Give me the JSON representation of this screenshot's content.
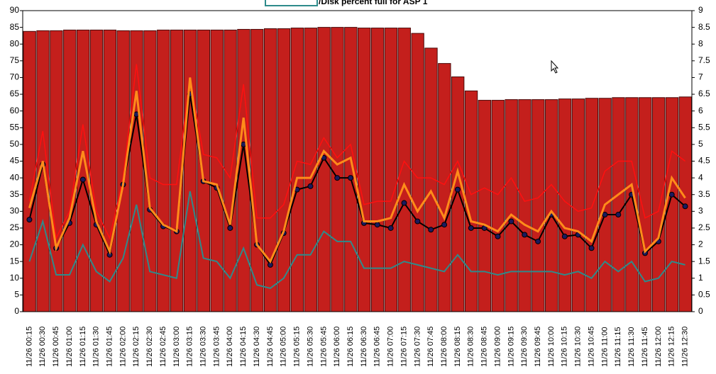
{
  "chart_data": {
    "type": "bar",
    "title": "/Disk percent full for ASP 1",
    "categories": [
      "11/26 00:15",
      "11/26 00:30",
      "11/26 00:45",
      "11/26 01:00",
      "11/26 01:15",
      "11/26 01:30",
      "11/26 01:45",
      "11/26 02:00",
      "11/26 02:15",
      "11/26 02:30",
      "11/26 02:45",
      "11/26 03:00",
      "11/26 03:15",
      "11/26 03:30",
      "11/26 03:45",
      "11/26 04:00",
      "11/26 04:15",
      "11/26 04:30",
      "11/26 04:45",
      "11/26 05:00",
      "11/26 05:15",
      "11/26 05:30",
      "11/26 05:45",
      "11/26 06:00",
      "11/26 06:15",
      "11/26 06:30",
      "11/26 06:45",
      "11/26 07:00",
      "11/26 07:15",
      "11/26 07:30",
      "11/26 07:45",
      "11/26 08:00",
      "11/26 08:15",
      "11/26 08:30",
      "11/26 08:45",
      "11/26 09:00",
      "11/26 09:15",
      "11/26 09:30",
      "11/26 09:45",
      "11/26 10:00",
      "11/26 10:15",
      "11/26 10:30",
      "11/26 10:45",
      "11/26 11:00",
      "11/26 11:15",
      "11/26 11:30",
      "11/26 11:45",
      "11/26 12:00",
      "11/26 12:15",
      "11/26 12:30"
    ],
    "bar_color": "#c41f1c",
    "values": [
      83.8,
      84,
      84,
      84.2,
      84.2,
      84.2,
      84.2,
      84,
      84,
      84,
      84.2,
      84.2,
      84.2,
      84.2,
      84.2,
      84.2,
      84.4,
      84.4,
      84.6,
      84.6,
      84.8,
      84.8,
      85,
      85,
      85,
      84.8,
      84.8,
      84.8,
      84.8,
      83.2,
      78.8,
      74.2,
      70.2,
      66,
      63.2,
      63.2,
      63.4,
      63.4,
      63.4,
      63.4,
      63.6,
      63.6,
      63.8,
      63.8,
      64,
      64,
      64,
      64,
      64,
      64.2
    ],
    "series": [
      {
        "color": "#ff1010",
        "width": 1.5,
        "values": [
          33,
          54,
          22,
          30,
          56,
          30,
          22,
          40,
          74,
          40,
          38,
          38,
          70,
          47,
          46,
          40,
          68,
          28,
          28,
          32,
          45,
          44,
          52,
          46,
          50,
          32,
          33,
          33,
          45,
          40,
          40,
          38,
          45,
          35,
          37,
          35,
          40,
          33,
          34,
          38,
          33,
          30,
          31,
          42,
          45,
          45,
          28,
          30,
          48,
          45
        ]
      },
      {
        "color": "#2e8b8b",
        "width": 2,
        "values": [
          15,
          27,
          11,
          11,
          20,
          12,
          9,
          16,
          32,
          12,
          11,
          10,
          36,
          16,
          15,
          10,
          19,
          8,
          7,
          10,
          17,
          17,
          24,
          21,
          21,
          13,
          13,
          13,
          15,
          14,
          13,
          12,
          17,
          12,
          12,
          11,
          12,
          12,
          12,
          12,
          11,
          12,
          10,
          15,
          12,
          15,
          9,
          10,
          15,
          14
        ]
      },
      {
        "color": "#000000",
        "width": 2,
        "markers": true,
        "values": [
          27.5,
          44,
          19,
          26.5,
          39.5,
          26,
          17,
          38,
          59,
          30.5,
          25.5,
          24,
          65,
          39,
          37,
          25,
          50,
          20,
          14,
          23.5,
          36.5,
          37.5,
          46,
          40,
          40,
          26.5,
          26,
          25,
          32.5,
          27,
          24.5,
          26,
          36.5,
          25,
          25,
          22.5,
          27,
          23,
          21,
          29,
          22.5,
          23,
          19,
          29,
          29,
          35,
          17.5,
          21,
          35,
          31.5
        ]
      },
      {
        "color": "#ff8c1a",
        "width": 3,
        "values": [
          31,
          45,
          19,
          28,
          48,
          27,
          18,
          38,
          66,
          31,
          26,
          24,
          70,
          39,
          38,
          26,
          58,
          20,
          15,
          24,
          40,
          40,
          48,
          44,
          46,
          27,
          27,
          28,
          38,
          30,
          36,
          28,
          42,
          27,
          26,
          24,
          29,
          26,
          24,
          30,
          25,
          24,
          21,
          32,
          35,
          38,
          18,
          22,
          40,
          34
        ]
      }
    ],
    "ylim": [
      0,
      90
    ],
    "yticks": [
      0,
      5,
      10,
      15,
      20,
      25,
      30,
      35,
      40,
      45,
      50,
      55,
      60,
      65,
      70,
      75,
      80,
      85,
      90
    ],
    "y2lim": [
      0,
      9
    ],
    "y2ticks": [
      0,
      0.5,
      1,
      1.5,
      2,
      2.5,
      3,
      3.5,
      4,
      4.5,
      5,
      5.5,
      6,
      6.5,
      7,
      7.5,
      8,
      8.5,
      9
    ]
  }
}
